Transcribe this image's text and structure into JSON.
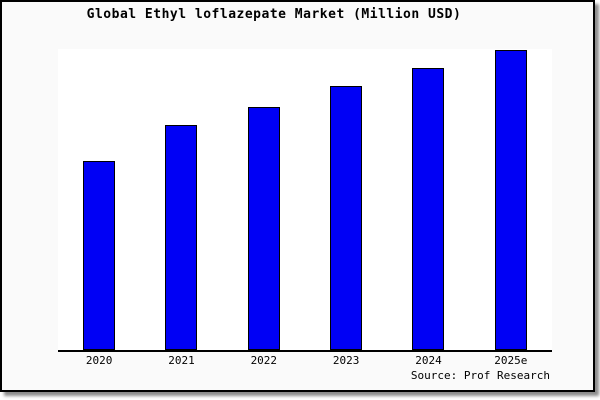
{
  "title": "Global Ethyl loflazepate Market (Million USD)",
  "source_note": "Source: Prof Research",
  "colors": {
    "bar_fill": "#0000f5",
    "bar_border": "#000000",
    "frame_background": "#fafafa",
    "plot_background": "#ffffff",
    "axis": "#000000",
    "frame_border": "#000000"
  },
  "chart_data": {
    "type": "bar",
    "title": "Global Ethyl loflazepate Market (Million USD)",
    "categories": [
      "2020",
      "2021",
      "2022",
      "2023",
      "2024",
      "2025e"
    ],
    "values": [
      63,
      75,
      81,
      88,
      94,
      100
    ],
    "value_note": "y-axis has no tick labels; values are relative bar heights as percent of the tallest (2025e) bar",
    "xlabel": "",
    "ylabel": "",
    "ylim": [
      0,
      100
    ],
    "grid": false,
    "legend": null,
    "annotations": [
      "Source: Prof Research"
    ]
  }
}
